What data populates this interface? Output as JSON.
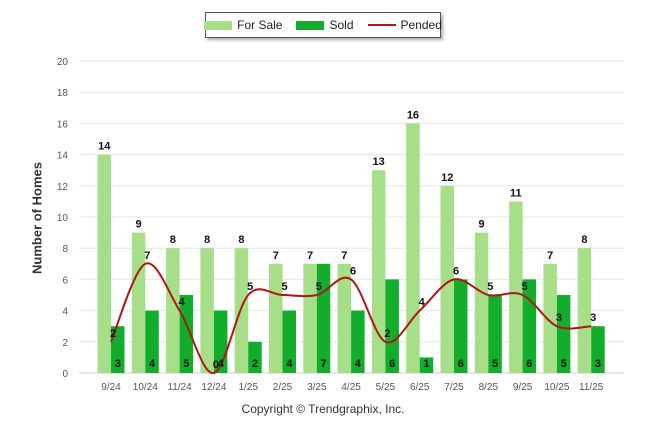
{
  "legend": {
    "for_sale": "For Sale",
    "sold": "Sold",
    "pended": "Pended"
  },
  "copyright": "Copyright © Trendgraphix, Inc.",
  "colors": {
    "for_sale": "#a6df88",
    "sold": "#12ad2b",
    "pended": "#b21515",
    "grid": "#e6e6e6",
    "axis_text": "#555555"
  },
  "chart_data": {
    "type": "bar",
    "ylabel": "Number of Homes",
    "ylim": [
      0,
      20
    ],
    "yticks": [
      0,
      2,
      4,
      6,
      8,
      10,
      12,
      14,
      16,
      18,
      20
    ],
    "grid": true,
    "legend_position": "top-center",
    "categories": [
      "9/24",
      "10/24",
      "11/24",
      "12/24",
      "1/25",
      "2/25",
      "3/25",
      "4/25",
      "5/25",
      "6/25",
      "7/25",
      "8/25",
      "9/25",
      "10/25",
      "11/25"
    ],
    "series": [
      {
        "name": "For Sale",
        "kind": "bar",
        "values": [
          14,
          9,
          8,
          8,
          8,
          7,
          7,
          7,
          13,
          16,
          12,
          9,
          11,
          7,
          8
        ]
      },
      {
        "name": "Sold",
        "kind": "bar",
        "values": [
          3,
          4,
          5,
          4,
          2,
          4,
          7,
          4,
          6,
          1,
          6,
          5,
          6,
          5,
          3
        ]
      },
      {
        "name": "Pended",
        "kind": "line",
        "values": [
          2,
          7,
          4,
          0,
          5,
          5,
          5,
          6,
          2,
          4,
          6,
          5,
          5,
          3,
          3
        ]
      }
    ]
  }
}
